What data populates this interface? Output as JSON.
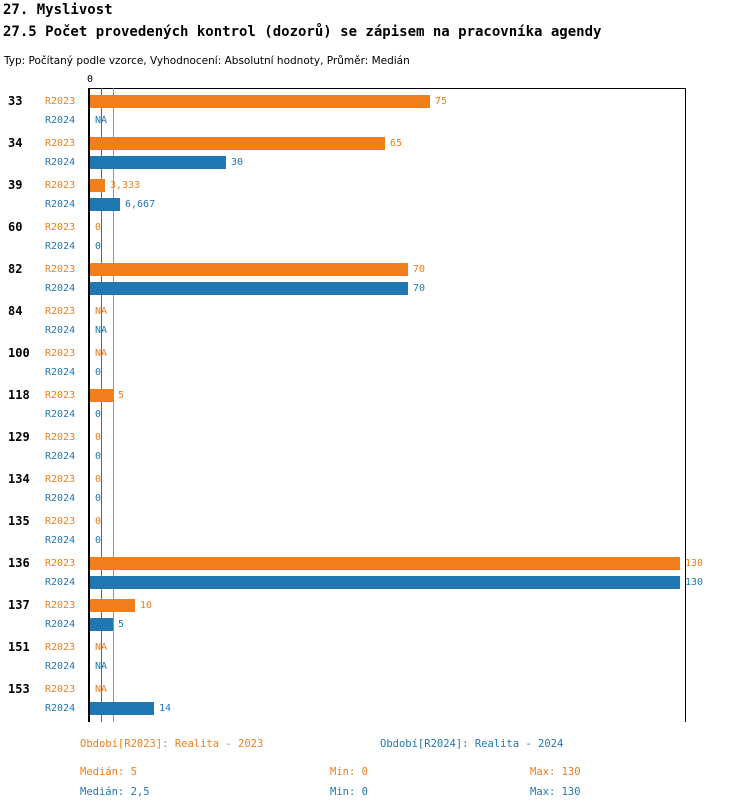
{
  "header": {
    "title": "27. Myslivost",
    "subtitle": "27.5 Počet provedených kontrol (dozorů) se zápisem na pracovníka agendy",
    "meta": "Typ: Počítaný podle vzorce, Vyhodnocení: Absolutní hodnoty, Průměr: Medián"
  },
  "colors": {
    "r2023": "#F07E1A",
    "r2024": "#1F77B4",
    "axis": "#000000"
  },
  "chart_data": {
    "type": "bar",
    "orientation": "horizontal",
    "title": "27.5 Počet provedených kontrol (dozorů) se zápisem na pracovníka agendy",
    "xlim": [
      0,
      130
    ],
    "x_tick_labels": [
      "0"
    ],
    "grid": false,
    "legend_position": "bottom",
    "series_names": [
      "R2023",
      "R2024"
    ],
    "medians": {
      "r2023": 5,
      "r2024": 2.5
    },
    "categories": [
      {
        "id": "33",
        "r2023": {
          "value": 75,
          "label": "75"
        },
        "r2024": {
          "value": null,
          "label": "NA"
        }
      },
      {
        "id": "34",
        "r2023": {
          "value": 65,
          "label": "65"
        },
        "r2024": {
          "value": 30,
          "label": "30"
        }
      },
      {
        "id": "39",
        "r2023": {
          "value": 3.333,
          "label": "3,333"
        },
        "r2024": {
          "value": 6.667,
          "label": "6,667"
        }
      },
      {
        "id": "60",
        "r2023": {
          "value": 0,
          "label": "0"
        },
        "r2024": {
          "value": 0,
          "label": "0"
        }
      },
      {
        "id": "82",
        "r2023": {
          "value": 70,
          "label": "70"
        },
        "r2024": {
          "value": 70,
          "label": "70"
        }
      },
      {
        "id": "84",
        "r2023": {
          "value": null,
          "label": "NA"
        },
        "r2024": {
          "value": null,
          "label": "NA"
        }
      },
      {
        "id": "100",
        "r2023": {
          "value": null,
          "label": "NA"
        },
        "r2024": {
          "value": 0,
          "label": "0"
        }
      },
      {
        "id": "118",
        "r2023": {
          "value": 5,
          "label": "5"
        },
        "r2024": {
          "value": 0,
          "label": "0"
        }
      },
      {
        "id": "129",
        "r2023": {
          "value": 0,
          "label": "0"
        },
        "r2024": {
          "value": 0,
          "label": "0"
        }
      },
      {
        "id": "134",
        "r2023": {
          "value": 0,
          "label": "0"
        },
        "r2024": {
          "value": 0,
          "label": "0"
        }
      },
      {
        "id": "135",
        "r2023": {
          "value": 0,
          "label": "0"
        },
        "r2024": {
          "value": 0,
          "label": "0"
        }
      },
      {
        "id": "136",
        "r2023": {
          "value": 130,
          "label": "130"
        },
        "r2024": {
          "value": 130,
          "label": "130"
        }
      },
      {
        "id": "137",
        "r2023": {
          "value": 10,
          "label": "10"
        },
        "r2024": {
          "value": 5,
          "label": "5"
        }
      },
      {
        "id": "151",
        "r2023": {
          "value": null,
          "label": "NA"
        },
        "r2024": {
          "value": null,
          "label": "NA"
        }
      },
      {
        "id": "153",
        "r2023": {
          "value": null,
          "label": "NA"
        },
        "r2024": {
          "value": 14,
          "label": "14"
        }
      }
    ]
  },
  "footer": {
    "legend_r2023": "Období[R2023]: Realita - 2023",
    "legend_r2024": "Období[R2024]: Realita - 2024",
    "stats_r2023": {
      "median": "Medián: 5",
      "min": "Min: 0",
      "max": "Max: 130"
    },
    "stats_r2024": {
      "median": "Medián: 2,5",
      "min": "Min: 0",
      "max": "Max: 130"
    }
  }
}
